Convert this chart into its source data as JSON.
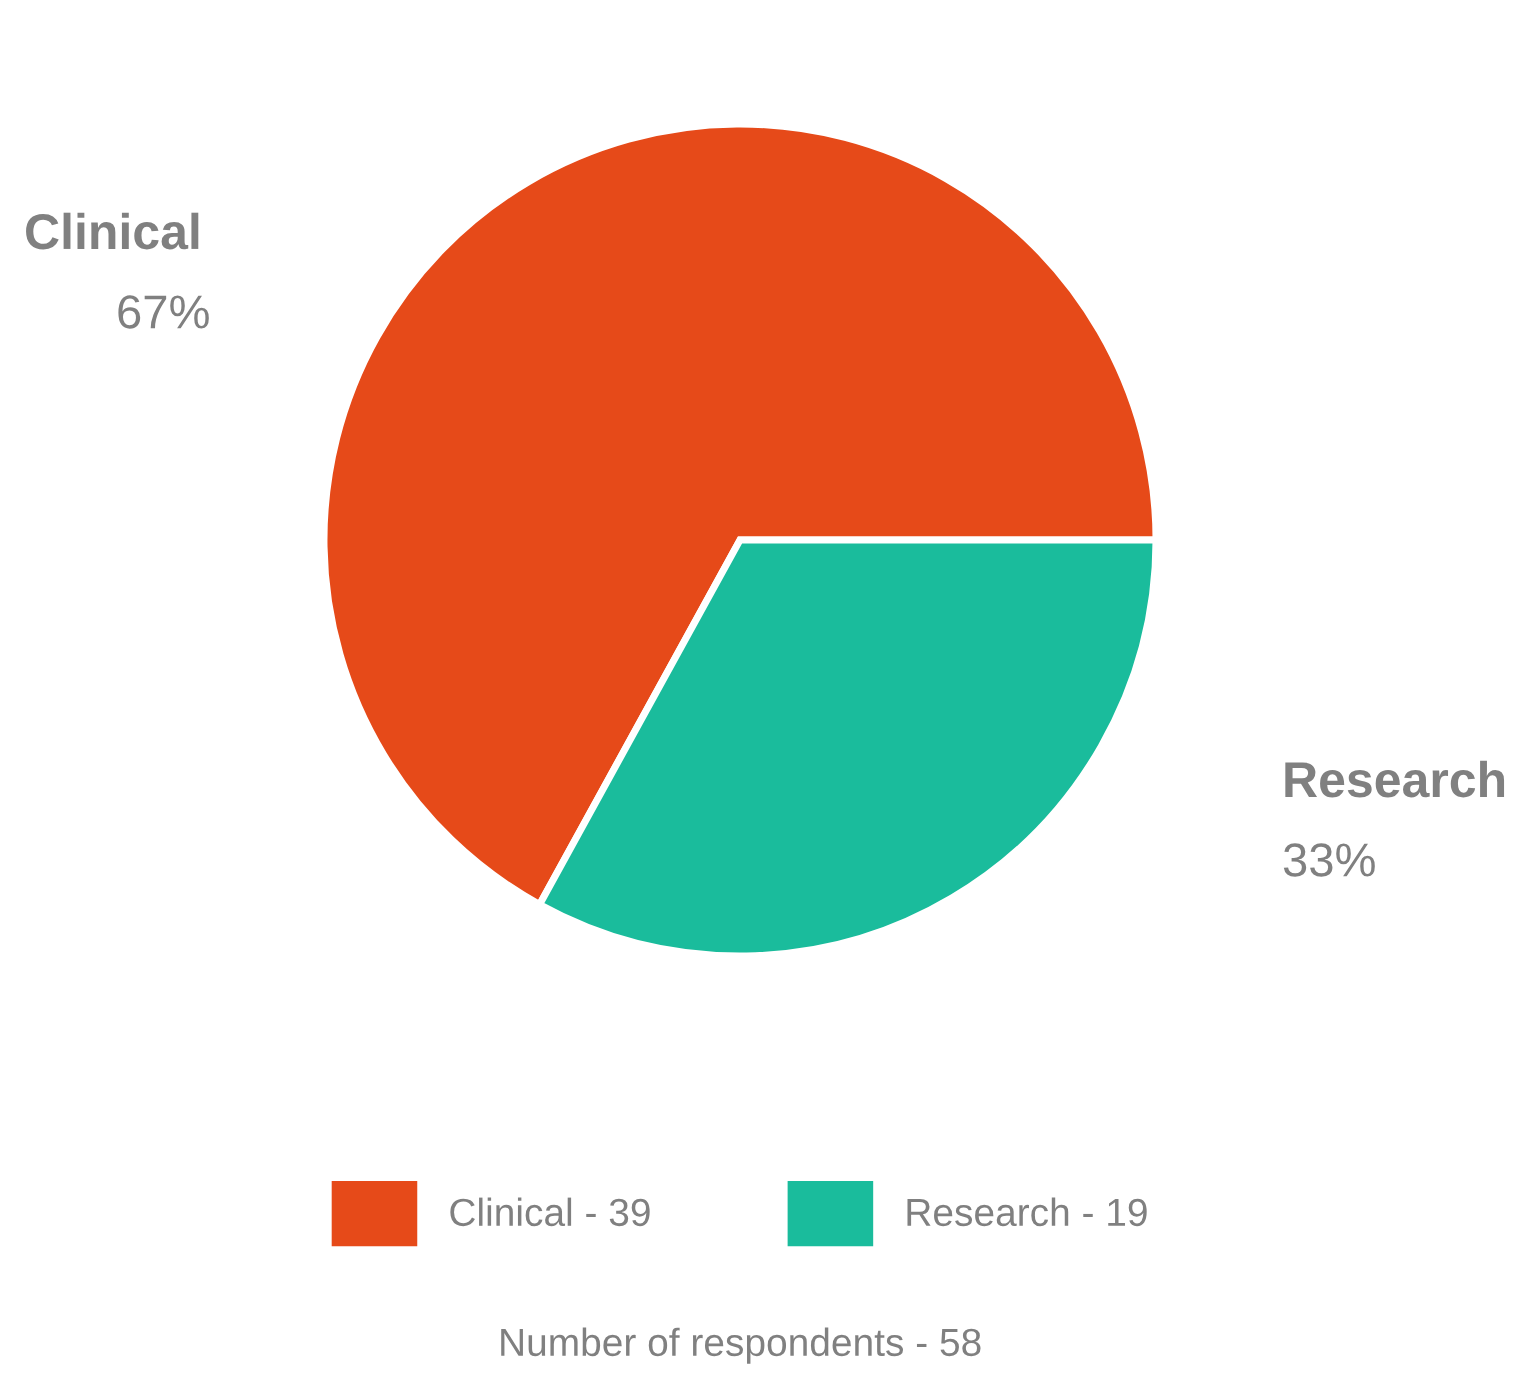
{
  "chart_data": {
    "type": "pie",
    "categories": [
      "Clinical - 39",
      "Research - 19"
    ],
    "values": [
      67,
      33
    ],
    "value_labels": [
      "Clinical\n67%",
      "Research\n33%"
    ],
    "colors": [
      "#e64a19",
      "#1abc9c"
    ],
    "legend": "bottom",
    "annotations": [
      "Number of respondents - 58"
    ]
  }
}
